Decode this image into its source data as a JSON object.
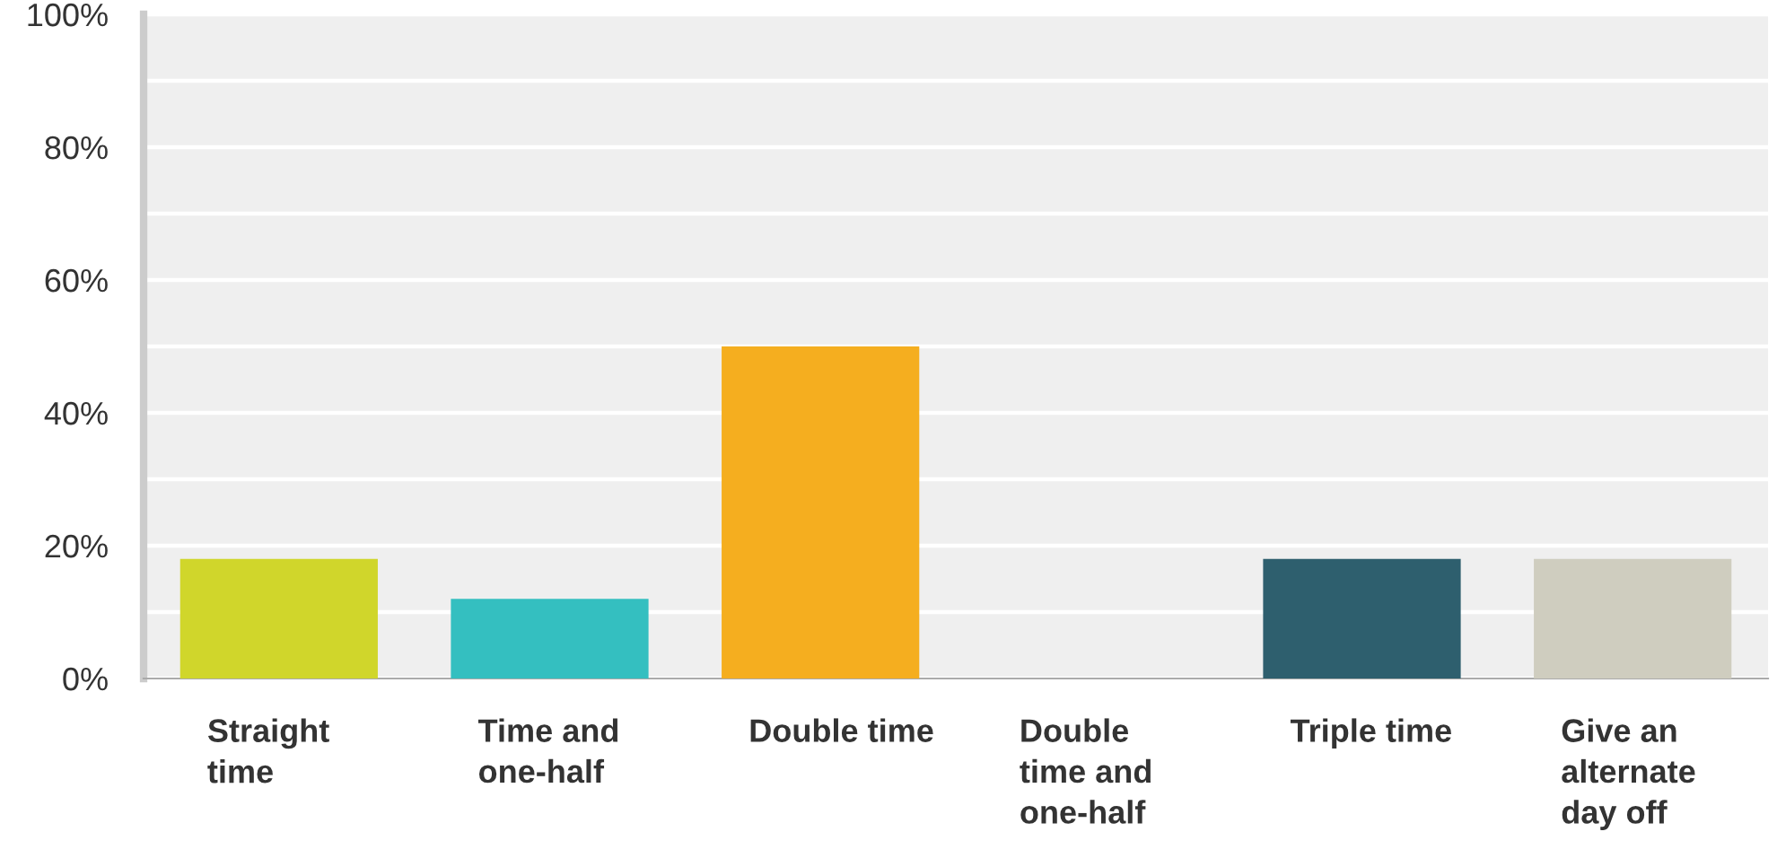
{
  "chart_data": {
    "type": "bar",
    "categories": [
      "Straight\ntime",
      "Time and\none-half",
      "Double time",
      "Double\ntime and\none-half",
      "Triple time",
      "Give an\nalternate\nday off"
    ],
    "values": [
      18,
      12,
      50,
      0,
      18,
      18
    ],
    "colors": [
      "#d0d62b",
      "#34bfc0",
      "#f5ae1f",
      "#9a9a9a",
      "#2e5f6e",
      "#cfcdbf"
    ],
    "ylim": [
      0,
      100
    ],
    "yticks": [
      {
        "value": 0,
        "label": "0%"
      },
      {
        "value": 10,
        "label": null
      },
      {
        "value": 20,
        "label": "20%"
      },
      {
        "value": 30,
        "label": null
      },
      {
        "value": 40,
        "label": "40%"
      },
      {
        "value": 50,
        "label": null
      },
      {
        "value": 60,
        "label": "60%"
      },
      {
        "value": 70,
        "label": null
      },
      {
        "value": 80,
        "label": "80%"
      },
      {
        "value": 90,
        "label": null
      },
      {
        "value": 100,
        "label": "100%"
      }
    ],
    "grid": "y",
    "legend": false
  }
}
